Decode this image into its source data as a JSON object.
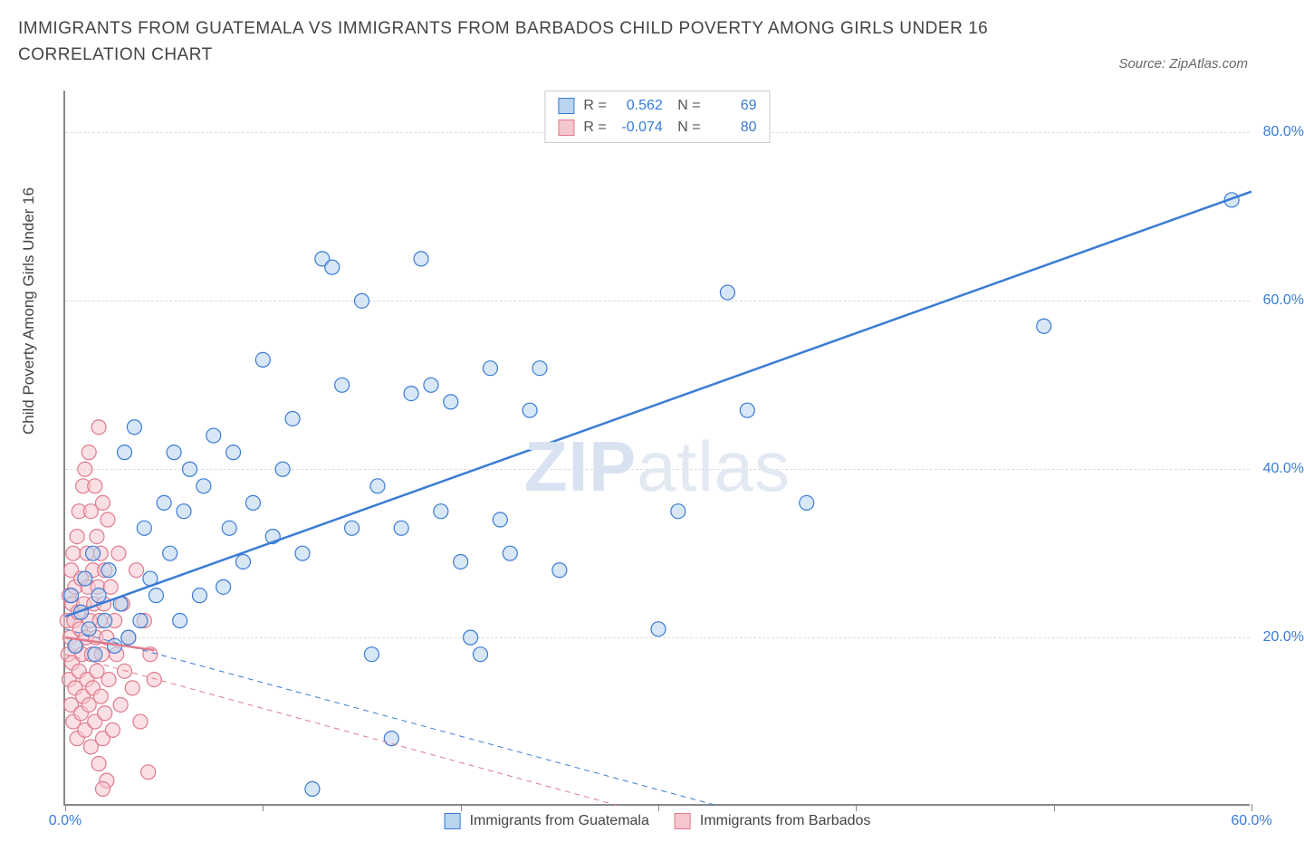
{
  "title": "IMMIGRANTS FROM GUATEMALA VS IMMIGRANTS FROM BARBADOS CHILD POVERTY AMONG GIRLS UNDER 16 CORRELATION CHART",
  "source": "Source: ZipAtlas.com",
  "ylabel": "Child Poverty Among Girls Under 16",
  "watermark_bold": "ZIP",
  "watermark_light": "atlas",
  "chart": {
    "type": "scatter",
    "background_color": "#ffffff",
    "grid_color": "#dddddd",
    "axis_color": "#888888",
    "xlim": [
      0,
      60
    ],
    "ylim": [
      0,
      85
    ],
    "x_ticks": [
      0,
      10,
      20,
      30,
      40,
      50,
      60
    ],
    "x_tick_labels": [
      "0.0%",
      "",
      "",
      "",
      "",
      "",
      "60.0%"
    ],
    "y_ticks": [
      20,
      40,
      60,
      80
    ],
    "y_tick_labels": [
      "20.0%",
      "40.0%",
      "60.0%",
      "80.0%"
    ],
    "tick_label_color": "#3a7bd5",
    "tick_fontsize": 16,
    "label_fontsize": 17,
    "title_fontsize": 19,
    "marker_radius": 8,
    "marker_opacity": 0.55,
    "line_width_solid": 2.5,
    "series": [
      {
        "name": "Immigrants from Guatemala",
        "color": "#5b9bd5",
        "fill": "#b8d4ee",
        "stroke": "#3a7bd5",
        "R": "0.562",
        "N": "69",
        "trend": {
          "x1": 0,
          "y1": 22.5,
          "x2": 60,
          "y2": 73,
          "style": "solid"
        },
        "trend_lower": {
          "x1": 0,
          "y1": 21,
          "x2": 33,
          "y2": 0,
          "style": "dashed"
        },
        "points": [
          [
            0.3,
            25
          ],
          [
            0.5,
            19
          ],
          [
            0.8,
            23
          ],
          [
            1.0,
            27
          ],
          [
            1.2,
            21
          ],
          [
            1.4,
            30
          ],
          [
            1.5,
            18
          ],
          [
            1.7,
            25
          ],
          [
            2.0,
            22
          ],
          [
            2.2,
            28
          ],
          [
            2.5,
            19
          ],
          [
            2.8,
            24
          ],
          [
            3.0,
            42
          ],
          [
            3.2,
            20
          ],
          [
            3.5,
            45
          ],
          [
            3.8,
            22
          ],
          [
            4.0,
            33
          ],
          [
            4.3,
            27
          ],
          [
            4.6,
            25
          ],
          [
            5.0,
            36
          ],
          [
            5.3,
            30
          ],
          [
            5.5,
            42
          ],
          [
            5.8,
            22
          ],
          [
            6.0,
            35
          ],
          [
            6.3,
            40
          ],
          [
            6.8,
            25
          ],
          [
            7.0,
            38
          ],
          [
            7.5,
            44
          ],
          [
            8.0,
            26
          ],
          [
            8.3,
            33
          ],
          [
            8.5,
            42
          ],
          [
            9.0,
            29
          ],
          [
            9.5,
            36
          ],
          [
            10.0,
            53
          ],
          [
            10.5,
            32
          ],
          [
            11.0,
            40
          ],
          [
            11.5,
            46
          ],
          [
            12.0,
            30
          ],
          [
            12.5,
            2
          ],
          [
            13.0,
            65
          ],
          [
            13.5,
            64
          ],
          [
            14.0,
            50
          ],
          [
            14.5,
            33
          ],
          [
            15.0,
            60
          ],
          [
            15.5,
            18
          ],
          [
            15.8,
            38
          ],
          [
            16.5,
            8
          ],
          [
            17.0,
            33
          ],
          [
            17.5,
            49
          ],
          [
            18.0,
            65
          ],
          [
            18.5,
            50
          ],
          [
            19.0,
            35
          ],
          [
            19.5,
            48
          ],
          [
            20.0,
            29
          ],
          [
            20.5,
            20
          ],
          [
            21.0,
            18
          ],
          [
            21.5,
            52
          ],
          [
            22.0,
            34
          ],
          [
            22.5,
            30
          ],
          [
            23.5,
            47
          ],
          [
            24.0,
            52
          ],
          [
            25.0,
            28
          ],
          [
            30.0,
            21
          ],
          [
            31.0,
            35
          ],
          [
            33.5,
            61
          ],
          [
            34.5,
            47
          ],
          [
            37.5,
            36
          ],
          [
            49.5,
            57
          ],
          [
            59.0,
            72
          ]
        ]
      },
      {
        "name": "Immigrants from Barbados",
        "color": "#e89ba8",
        "fill": "#f5c6ce",
        "stroke": "#e07a8b",
        "R": "-0.074",
        "N": "80",
        "trend": {
          "x1": 0,
          "y1": 20,
          "x2": 4.5,
          "y2": 18.5,
          "style": "solid"
        },
        "trend_lower": {
          "x1": 0,
          "y1": 18,
          "x2": 28,
          "y2": 0,
          "style": "dashed"
        },
        "points": [
          [
            0.1,
            22
          ],
          [
            0.15,
            18
          ],
          [
            0.2,
            25
          ],
          [
            0.2,
            15
          ],
          [
            0.25,
            20
          ],
          [
            0.3,
            28
          ],
          [
            0.3,
            12
          ],
          [
            0.35,
            24
          ],
          [
            0.35,
            17
          ],
          [
            0.4,
            30
          ],
          [
            0.4,
            10
          ],
          [
            0.45,
            22
          ],
          [
            0.5,
            26
          ],
          [
            0.5,
            14
          ],
          [
            0.55,
            19
          ],
          [
            0.6,
            32
          ],
          [
            0.6,
            8
          ],
          [
            0.65,
            23
          ],
          [
            0.7,
            35
          ],
          [
            0.7,
            16
          ],
          [
            0.75,
            21
          ],
          [
            0.8,
            27
          ],
          [
            0.8,
            11
          ],
          [
            0.85,
            18
          ],
          [
            0.9,
            38
          ],
          [
            0.9,
            13
          ],
          [
            0.95,
            24
          ],
          [
            1.0,
            40
          ],
          [
            1.0,
            9
          ],
          [
            1.05,
            20
          ],
          [
            1.1,
            30
          ],
          [
            1.1,
            15
          ],
          [
            1.15,
            26
          ],
          [
            1.2,
            42
          ],
          [
            1.2,
            12
          ],
          [
            1.25,
            22
          ],
          [
            1.3,
            35
          ],
          [
            1.3,
            7
          ],
          [
            1.35,
            18
          ],
          [
            1.4,
            28
          ],
          [
            1.4,
            14
          ],
          [
            1.45,
            24
          ],
          [
            1.5,
            38
          ],
          [
            1.5,
            10
          ],
          [
            1.55,
            20
          ],
          [
            1.6,
            32
          ],
          [
            1.6,
            16
          ],
          [
            1.65,
            26
          ],
          [
            1.7,
            45
          ],
          [
            1.7,
            5
          ],
          [
            1.75,
            22
          ],
          [
            1.8,
            30
          ],
          [
            1.8,
            13
          ],
          [
            1.85,
            18
          ],
          [
            1.9,
            36
          ],
          [
            1.9,
            8
          ],
          [
            1.95,
            24
          ],
          [
            2.0,
            28
          ],
          [
            2.0,
            11
          ],
          [
            2.1,
            20
          ],
          [
            2.15,
            34
          ],
          [
            2.2,
            15
          ],
          [
            2.3,
            26
          ],
          [
            2.4,
            9
          ],
          [
            2.5,
            22
          ],
          [
            2.6,
            18
          ],
          [
            2.7,
            30
          ],
          [
            2.8,
            12
          ],
          [
            2.9,
            24
          ],
          [
            3.0,
            16
          ],
          [
            3.2,
            20
          ],
          [
            3.4,
            14
          ],
          [
            3.6,
            28
          ],
          [
            3.8,
            10
          ],
          [
            4.0,
            22
          ],
          [
            4.2,
            4
          ],
          [
            4.3,
            18
          ],
          [
            4.5,
            15
          ],
          [
            2.1,
            3
          ],
          [
            1.9,
            2
          ]
        ]
      }
    ],
    "legend": {
      "stats_labels": {
        "R": "R =",
        "N": "N ="
      },
      "value_color": "#3a7bd5"
    }
  }
}
